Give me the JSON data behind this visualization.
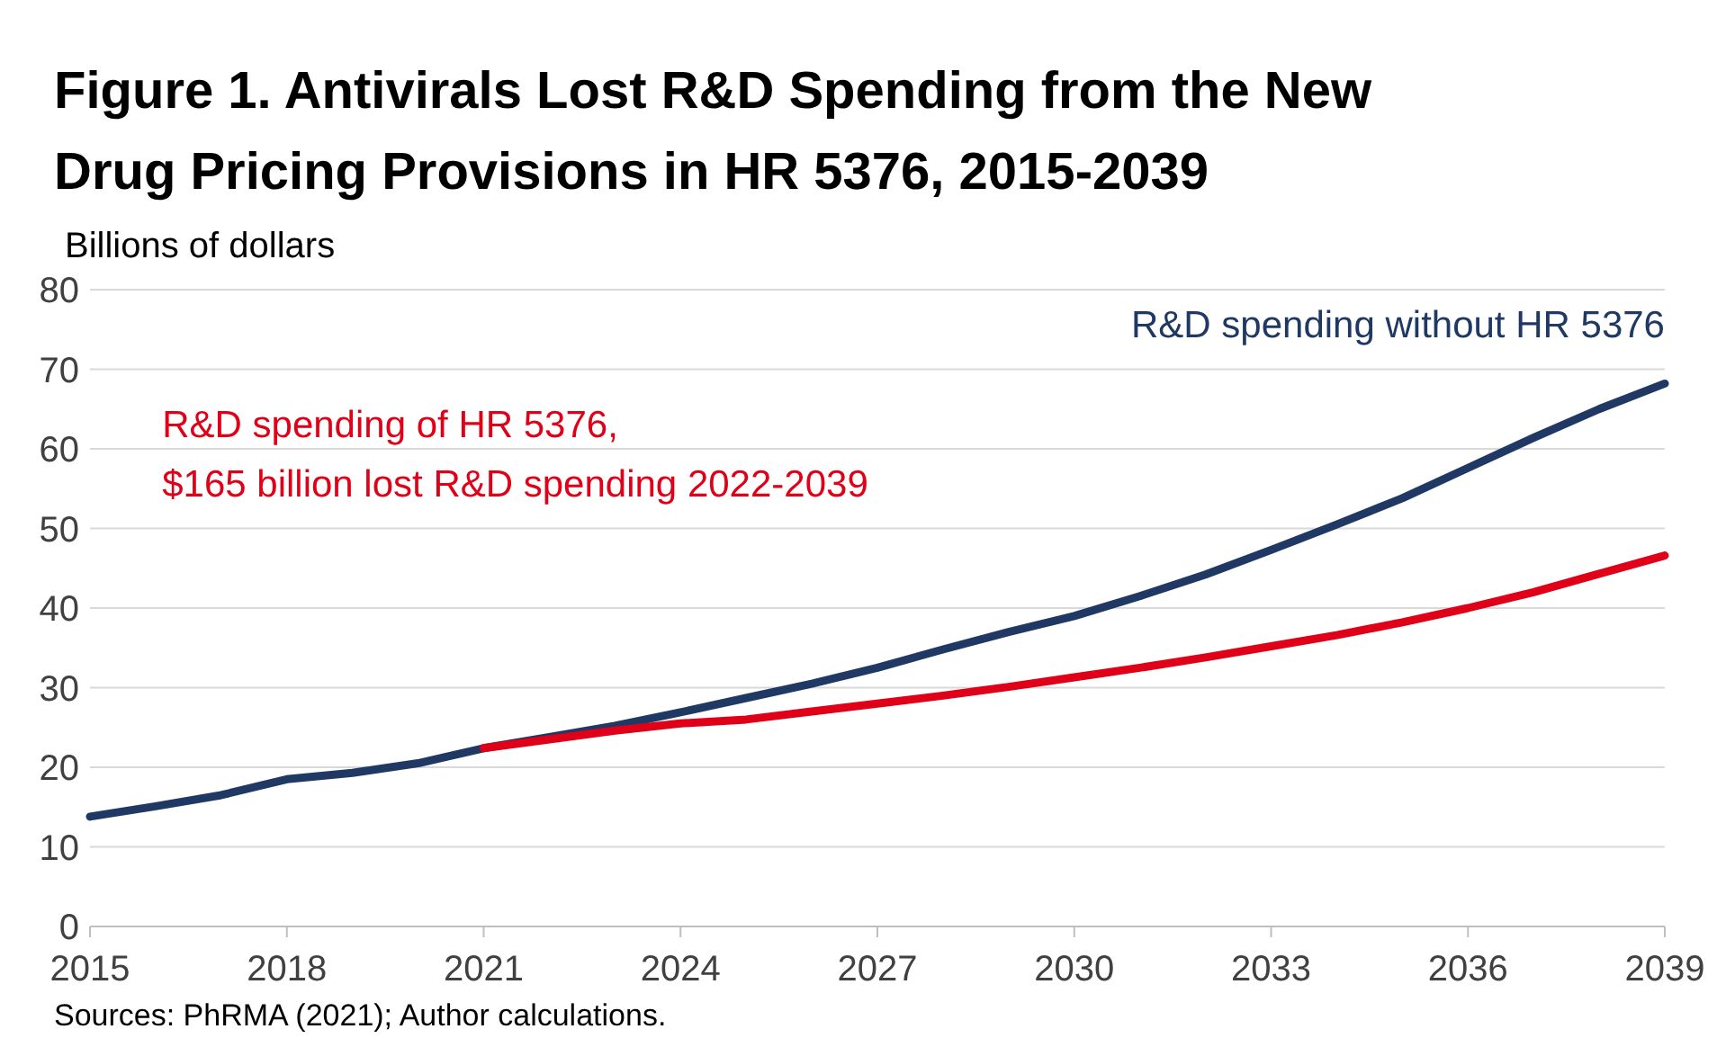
{
  "chart_data": {
    "type": "line",
    "title": "Figure 1. Antivirals Lost R&D Spending from the New Drug Pricing Provisions in HR 5376, 2015-2039",
    "ylabel": "Billions of dollars",
    "annotations": [
      "Sources: PhRMA (2021); Author calculations."
    ],
    "xlim": [
      2015,
      2039
    ],
    "xticks": [
      2015,
      2018,
      2021,
      2024,
      2027,
      2030,
      2033,
      2036,
      2039
    ],
    "ylim": [
      0,
      80
    ],
    "yticks": [
      0,
      10,
      20,
      30,
      40,
      50,
      60,
      70,
      80
    ],
    "grid": "y",
    "series": [
      {
        "name": "R&D spending without HR 5376",
        "color": "#1f3864",
        "x": [
          2015,
          2016,
          2017,
          2018,
          2019,
          2020,
          2021,
          2022,
          2023,
          2024,
          2025,
          2026,
          2027,
          2028,
          2029,
          2030,
          2031,
          2032,
          2033,
          2034,
          2035,
          2036,
          2037,
          2038,
          2039
        ],
        "values": [
          13.8,
          15.1,
          16.5,
          18.5,
          19.3,
          20.5,
          22.4,
          23.8,
          25.2,
          26.9,
          28.7,
          30.5,
          32.5,
          34.8,
          37,
          39,
          41.5,
          44.2,
          47.3,
          50.5,
          53.8,
          57.6,
          61.4,
          65,
          68.2
        ]
      },
      {
        "name": "R&D spending of HR 5376,\n$165 billion lost R&D spending 2022-2039",
        "color": "#e00018",
        "x": [
          2021,
          2022,
          2023,
          2024,
          2025,
          2026,
          2027,
          2028,
          2029,
          2030,
          2031,
          2032,
          2033,
          2034,
          2035,
          2036,
          2037,
          2038,
          2039
        ],
        "values": [
          22.4,
          23.5,
          24.6,
          25.5,
          26,
          27,
          28,
          29,
          30.1,
          31.3,
          32.5,
          33.8,
          35.2,
          36.6,
          38.2,
          40,
          42,
          44.3,
          46.6
        ]
      }
    ]
  }
}
